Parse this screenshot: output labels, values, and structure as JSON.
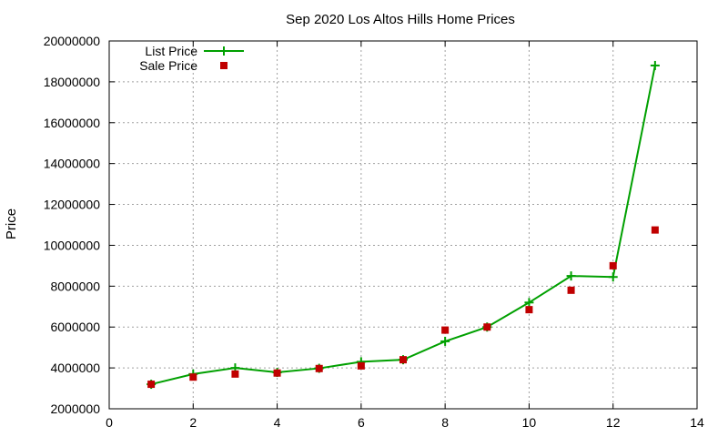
{
  "chart_data": {
    "type": "line",
    "title": "Sep 2020 Los Altos Hills Home Prices",
    "xlabel": "",
    "ylabel": "Price",
    "xlim": [
      0,
      14
    ],
    "ylim": [
      2000000,
      20000000
    ],
    "xticks": [
      0,
      2,
      4,
      6,
      8,
      10,
      12,
      14
    ],
    "yticks": [
      2000000,
      4000000,
      6000000,
      8000000,
      10000000,
      12000000,
      14000000,
      16000000,
      18000000,
      20000000
    ],
    "grid": true,
    "legend_position": "top-left",
    "series": [
      {
        "name": "List Price",
        "style": "line+plus",
        "color": "#00a000",
        "x": [
          1,
          2,
          3,
          4,
          5,
          6,
          7,
          8,
          9,
          10,
          11,
          12,
          13
        ],
        "y": [
          3200000,
          3700000,
          4000000,
          3780000,
          3980000,
          4300000,
          4400000,
          5300000,
          6000000,
          7200000,
          8500000,
          8450000,
          18800000
        ]
      },
      {
        "name": "Sale Price",
        "style": "square-marker",
        "color": "#c00000",
        "x": [
          1,
          2,
          3,
          4,
          5,
          6,
          7,
          8,
          9,
          10,
          11,
          12,
          13
        ],
        "y": [
          3200000,
          3550000,
          3700000,
          3750000,
          3970000,
          4100000,
          4400000,
          5850000,
          6000000,
          6850000,
          7800000,
          9000000,
          10750000
        ]
      }
    ]
  }
}
